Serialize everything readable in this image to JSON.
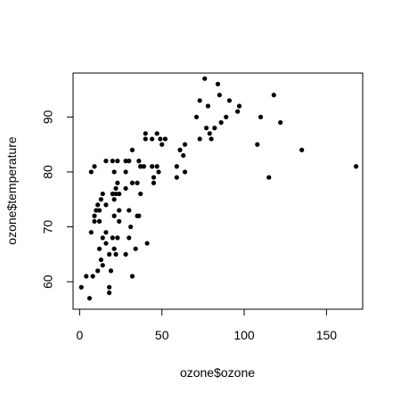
{
  "chart_data": {
    "type": "scatter",
    "xlabel": "ozone$ozone",
    "ylabel": "ozone$temperature",
    "xlim": [
      -4,
      172
    ],
    "ylim": [
      55,
      98
    ],
    "xticks": [
      0,
      50,
      100,
      150
    ],
    "yticks": [
      60,
      70,
      80,
      90
    ],
    "grid": false,
    "colors": {
      "points": "#000000",
      "axes": "#000000",
      "background": "#ffffff"
    },
    "points": [
      [
        1,
        59
      ],
      [
        4,
        61
      ],
      [
        6,
        57
      ],
      [
        7,
        69
      ],
      [
        7,
        80
      ],
      [
        8,
        61
      ],
      [
        9,
        71
      ],
      [
        9,
        72
      ],
      [
        9,
        81
      ],
      [
        10,
        73
      ],
      [
        11,
        62
      ],
      [
        11,
        74
      ],
      [
        12,
        66
      ],
      [
        12,
        71
      ],
      [
        12,
        73
      ],
      [
        13,
        64
      ],
      [
        13,
        75
      ],
      [
        14,
        76
      ],
      [
        14,
        68
      ],
      [
        14,
        63
      ],
      [
        16,
        69
      ],
      [
        16,
        82
      ],
      [
        16,
        67
      ],
      [
        16,
        74
      ],
      [
        18,
        58
      ],
      [
        18,
        59
      ],
      [
        18,
        65
      ],
      [
        19,
        62
      ],
      [
        20,
        68
      ],
      [
        20,
        76
      ],
      [
        20,
        82
      ],
      [
        21,
        66
      ],
      [
        21,
        80
      ],
      [
        21,
        72
      ],
      [
        21,
        75
      ],
      [
        22,
        65
      ],
      [
        22,
        76
      ],
      [
        22,
        77
      ],
      [
        23,
        68
      ],
      [
        23,
        78
      ],
      [
        23,
        82
      ],
      [
        24,
        73
      ],
      [
        24,
        76
      ],
      [
        24,
        71
      ],
      [
        28,
        65
      ],
      [
        28,
        77
      ],
      [
        28,
        80
      ],
      [
        28,
        82
      ],
      [
        30,
        73
      ],
      [
        30,
        68
      ],
      [
        30,
        82
      ],
      [
        31,
        70
      ],
      [
        32,
        61
      ],
      [
        32,
        78
      ],
      [
        32,
        84
      ],
      [
        34,
        66
      ],
      [
        35,
        72
      ],
      [
        35,
        78
      ],
      [
        36,
        72
      ],
      [
        36,
        82
      ],
      [
        37,
        81
      ],
      [
        37,
        76
      ],
      [
        37,
        81
      ],
      [
        39,
        81
      ],
      [
        40,
        87
      ],
      [
        40,
        86
      ],
      [
        41,
        67
      ],
      [
        44,
        86
      ],
      [
        44,
        81
      ],
      [
        45,
        79
      ],
      [
        45,
        78
      ],
      [
        47,
        81
      ],
      [
        47,
        87
      ],
      [
        48,
        80
      ],
      [
        49,
        86
      ],
      [
        50,
        85
      ],
      [
        52,
        86
      ],
      [
        59,
        81
      ],
      [
        59,
        79
      ],
      [
        61,
        84
      ],
      [
        63,
        83
      ],
      [
        64,
        85
      ],
      [
        64,
        80
      ],
      [
        71,
        90
      ],
      [
        73,
        93
      ],
      [
        73,
        86
      ],
      [
        76,
        97
      ],
      [
        77,
        88
      ],
      [
        78,
        92
      ],
      [
        79,
        87
      ],
      [
        80,
        86
      ],
      [
        82,
        88
      ],
      [
        84,
        96
      ],
      [
        85,
        94
      ],
      [
        86,
        89
      ],
      [
        89,
        90
      ],
      [
        91,
        93
      ],
      [
        96,
        91
      ],
      [
        97,
        92
      ],
      [
        108,
        85
      ],
      [
        110,
        90
      ],
      [
        115,
        79
      ],
      [
        118,
        94
      ],
      [
        122,
        89
      ],
      [
        135,
        84
      ],
      [
        168,
        81
      ]
    ]
  }
}
